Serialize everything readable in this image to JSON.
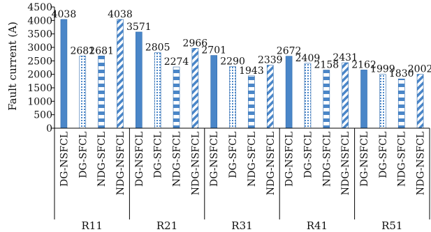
{
  "chart_data": {
    "type": "bar",
    "ylabel": "Fault current (A)",
    "ylim": [
      0,
      4500
    ],
    "ytick_step": 500,
    "grid": false,
    "legend": "none",
    "colors": {
      "bar": "#4a86c8",
      "stroke": "#2e6aad",
      "pattern_bg": "#ffffff"
    },
    "groups": [
      {
        "name": "R11",
        "bars": [
          {
            "category": "DG-NSFCL",
            "value": 4038,
            "label": "4038",
            "pattern": "solid"
          },
          {
            "category": "DG-SFCL",
            "value": 2681,
            "label": "2681",
            "pattern": "dots"
          },
          {
            "category": "NDG-SFCL",
            "value": 2681,
            "label": "2681",
            "pattern": "checker"
          },
          {
            "category": "NDG-NSFCL",
            "value": 4038,
            "label": "4038",
            "pattern": "diagonal"
          }
        ]
      },
      {
        "name": "R21",
        "bars": [
          {
            "category": "DG-NSFCL",
            "value": 3571,
            "label": "3571",
            "pattern": "solid"
          },
          {
            "category": "DG-SFCL",
            "value": 2805,
            "label": "2805",
            "pattern": "dots"
          },
          {
            "category": "NDG-SFCL",
            "value": 2274,
            "label": "2274",
            "pattern": "checker"
          },
          {
            "category": "NDG-NSFCL",
            "value": 2966,
            "label": "2966",
            "pattern": "diagonal"
          }
        ]
      },
      {
        "name": "R31",
        "bars": [
          {
            "category": "DG-NSFCL",
            "value": 2701,
            "label": "2701",
            "pattern": "solid"
          },
          {
            "category": "DG-SFCL",
            "value": 2290,
            "label": "2290",
            "pattern": "dots"
          },
          {
            "category": "NDG-SFCL",
            "value": 1943,
            "label": "1943",
            "pattern": "checker"
          },
          {
            "category": "NDG-NSFCL",
            "value": 2339,
            "label": "2339",
            "pattern": "diagonal"
          }
        ]
      },
      {
        "name": "R41",
        "bars": [
          {
            "category": "DG-NSFCL",
            "value": 2672,
            "label": "2672",
            "pattern": "solid"
          },
          {
            "category": "DG-SFCL",
            "value": 2409,
            "label": "2409",
            "pattern": "dots"
          },
          {
            "category": "NDG-SFCL",
            "value": 2158,
            "label": "2158",
            "pattern": "checker"
          },
          {
            "category": "NDG-NSFCL",
            "value": 2431,
            "label": "2431",
            "pattern": "diagonal"
          }
        ]
      },
      {
        "name": "R51",
        "bars": [
          {
            "category": "DG-NSFCL",
            "value": 2162,
            "label": "2162",
            "pattern": "solid"
          },
          {
            "category": "DG-SFCL",
            "value": 1999,
            "label": "1999",
            "pattern": "dots"
          },
          {
            "category": "NDG-SFCL",
            "value": 1830,
            "label": "1830",
            "pattern": "checker"
          },
          {
            "category": "NDG-NSFCL",
            "value": 2002,
            "label": "2002",
            "pattern": "diagonal"
          }
        ]
      }
    ]
  }
}
